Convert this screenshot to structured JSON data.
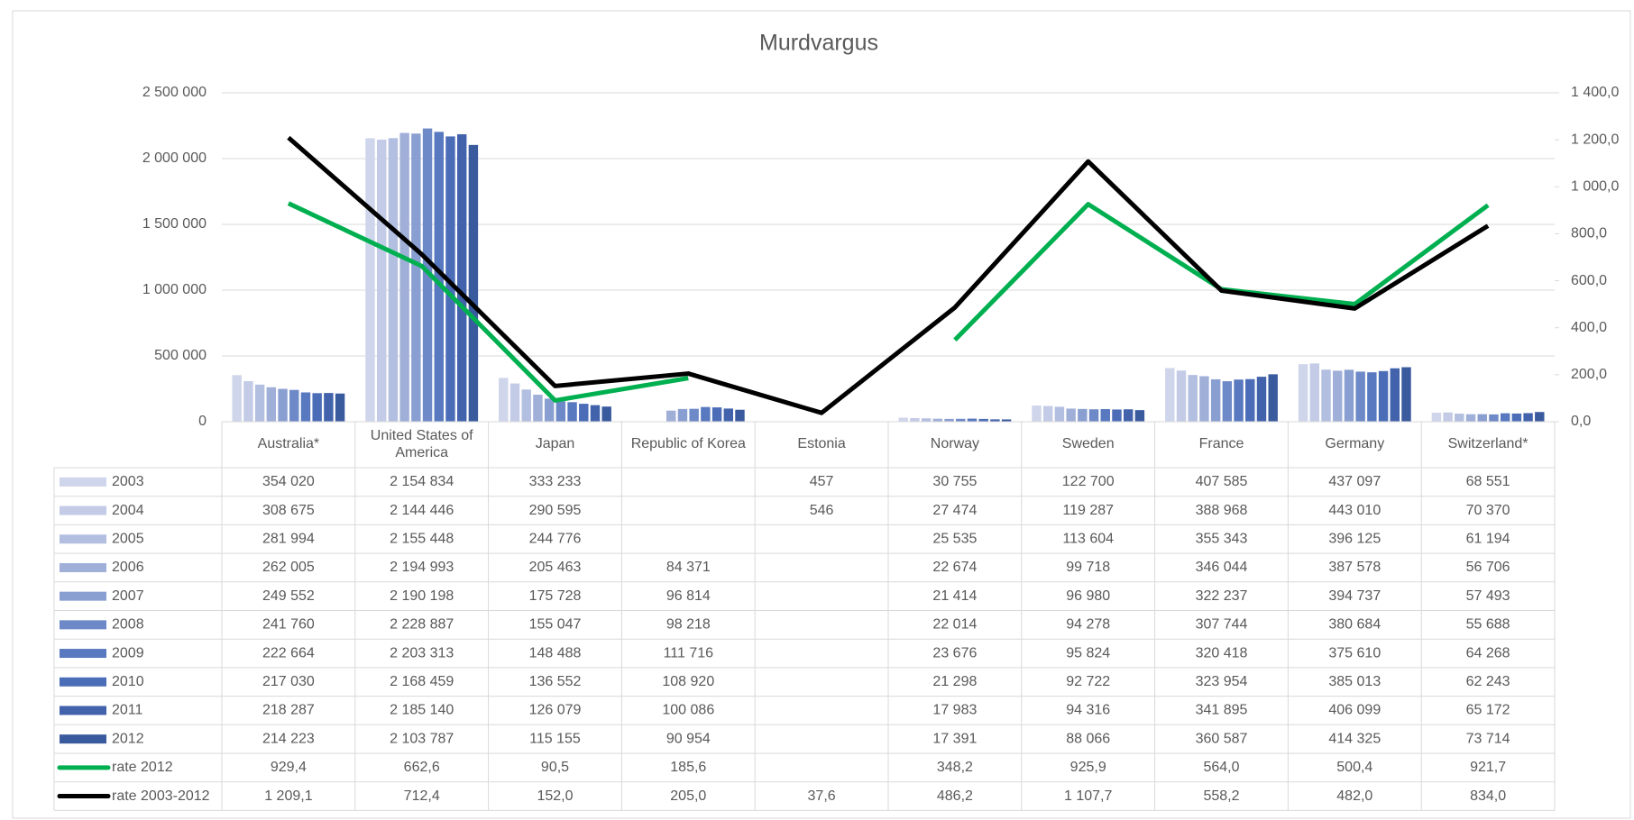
{
  "chart_data": {
    "type": "bar",
    "title": "Murdvargus",
    "categories": [
      "Australia*",
      "United States of America",
      "Japan",
      "Republic of Korea",
      "Estonia",
      "Norway",
      "Sweden",
      "France",
      "Germany",
      "Switzerland*"
    ],
    "ylim": [
      0,
      2500000
    ],
    "yticks": [
      0,
      {
        "value": 500000,
        "label": "500 000"
      },
      {
        "value": 1000000,
        "label": "1 000 000"
      },
      {
        "value": 1500000,
        "label": "1 500 000"
      },
      {
        "value": 2000000,
        "label": "2 000 000"
      },
      {
        "value": 2500000,
        "label": "2 500 000"
      }
    ],
    "y2lim": [
      0,
      1400
    ],
    "y2ticks": [
      {
        "value": 0,
        "label": "0,0"
      },
      {
        "value": 200,
        "label": "200,0"
      },
      {
        "value": 400,
        "label": "400,0"
      },
      {
        "value": 600,
        "label": "600,0"
      },
      {
        "value": 800,
        "label": "800,0"
      },
      {
        "value": 1000,
        "label": "1 000,0"
      },
      {
        "value": 1200,
        "label": "1 200,0"
      },
      {
        "value": 1400,
        "label": "1 400,0"
      }
    ],
    "grid": true,
    "series": [
      {
        "name": "2003",
        "color": "#cfd5ea",
        "values": [
          354020,
          2154834,
          333233,
          null,
          457,
          30755,
          122700,
          407585,
          437097,
          68551
        ],
        "value_labels": [
          "354 020",
          "2 154 834",
          "333 233",
          null,
          "457",
          "30 755",
          "122 700",
          "407 585",
          "437 097",
          "68 551"
        ]
      },
      {
        "name": "2004",
        "color": "#c3cbe6",
        "values": [
          308675,
          2144446,
          290595,
          null,
          546,
          27474,
          119287,
          388968,
          443010,
          70370
        ],
        "value_labels": [
          "308 675",
          "2 144 446",
          "290 595",
          null,
          "546",
          "27 474",
          "119 287",
          "388 968",
          "443 010",
          "70 370"
        ]
      },
      {
        "name": "2005",
        "color": "#b3bfe0",
        "values": [
          281994,
          2155448,
          244776,
          null,
          null,
          25535,
          113604,
          355343,
          396125,
          61194
        ],
        "value_labels": [
          "281 994",
          "2 155 448",
          "244 776",
          null,
          null,
          "25 535",
          "113 604",
          "355 343",
          "396 125",
          "61 194"
        ]
      },
      {
        "name": "2006",
        "color": "#9fafd8",
        "values": [
          262005,
          2194993,
          205463,
          84371,
          null,
          22674,
          99718,
          346044,
          387578,
          56706
        ],
        "value_labels": [
          "262 005",
          "2 194 993",
          "205 463",
          "84 371",
          null,
          "22 674",
          "99 718",
          "346 044",
          "387 578",
          "56 706"
        ]
      },
      {
        "name": "2007",
        "color": "#8a9fd1",
        "values": [
          249552,
          2190198,
          175728,
          96814,
          null,
          21414,
          96980,
          322237,
          394737,
          57493
        ],
        "value_labels": [
          "249 552",
          "2 190 198",
          "175 728",
          "96 814",
          null,
          "21 414",
          "96 980",
          "322 237",
          "394 737",
          "57 493"
        ]
      },
      {
        "name": "2008",
        "color": "#6e89c7",
        "values": [
          241760,
          2228887,
          155047,
          98218,
          null,
          22014,
          94278,
          307744,
          380684,
          55688
        ],
        "value_labels": [
          "241 760",
          "2 228 887",
          "155 047",
          "98 218",
          null,
          "22 014",
          "94 278",
          "307 744",
          "380 684",
          "55 688"
        ]
      },
      {
        "name": "2009",
        "color": "#5879c0",
        "values": [
          222664,
          2203313,
          148488,
          111716,
          null,
          23676,
          95824,
          320418,
          375610,
          64268
        ],
        "value_labels": [
          "222 664",
          "2 203 313",
          "148 488",
          "111 716",
          null,
          "23 676",
          "95 824",
          "320 418",
          "375 610",
          "64 268"
        ]
      },
      {
        "name": "2010",
        "color": "#4b6db7",
        "values": [
          217030,
          2168459,
          136552,
          108920,
          null,
          21298,
          92722,
          323954,
          385013,
          62243
        ],
        "value_labels": [
          "217 030",
          "2 168 459",
          "136 552",
          "108 920",
          null,
          "21 298",
          "92 722",
          "323 954",
          "385 013",
          "62 243"
        ]
      },
      {
        "name": "2011",
        "color": "#4263ac",
        "values": [
          218287,
          2185140,
          126079,
          100086,
          null,
          17983,
          94316,
          341895,
          406099,
          65172
        ],
        "value_labels": [
          "218 287",
          "2 185 140",
          "126 079",
          "100 086",
          null,
          "17 983",
          "94 316",
          "341 895",
          "406 099",
          "65 172"
        ]
      },
      {
        "name": "2012",
        "color": "#3a5a9e",
        "values": [
          214223,
          2103787,
          115155,
          90954,
          null,
          17391,
          88066,
          360587,
          414325,
          73714
        ],
        "value_labels": [
          "214 223",
          "2 103 787",
          "115 155",
          "90 954",
          null,
          "17 391",
          "88 066",
          "360 587",
          "414 325",
          "73 714"
        ]
      },
      {
        "name": "rate 2012",
        "type": "line",
        "axis": "y2",
        "color": "#00b050",
        "values": [
          929.4,
          662.6,
          90.5,
          185.6,
          null,
          348.2,
          925.9,
          564.0,
          500.4,
          921.7
        ],
        "value_labels": [
          "929,4",
          "662,6",
          "90,5",
          "185,6",
          null,
          "348,2",
          "925,9",
          "564,0",
          "500,4",
          "921,7"
        ]
      },
      {
        "name": "rate 2003-2012",
        "type": "line",
        "axis": "y2",
        "color": "#000000",
        "values": [
          1209.1,
          712.4,
          152.0,
          205.0,
          37.6,
          486.2,
          1107.7,
          558.2,
          482.0,
          834.0
        ],
        "value_labels": [
          "1 209,1",
          "712,4",
          "152,0",
          "205,0",
          "37,6",
          "486,2",
          "1 107,7",
          "558,2",
          "482,0",
          "834,0"
        ]
      }
    ]
  }
}
